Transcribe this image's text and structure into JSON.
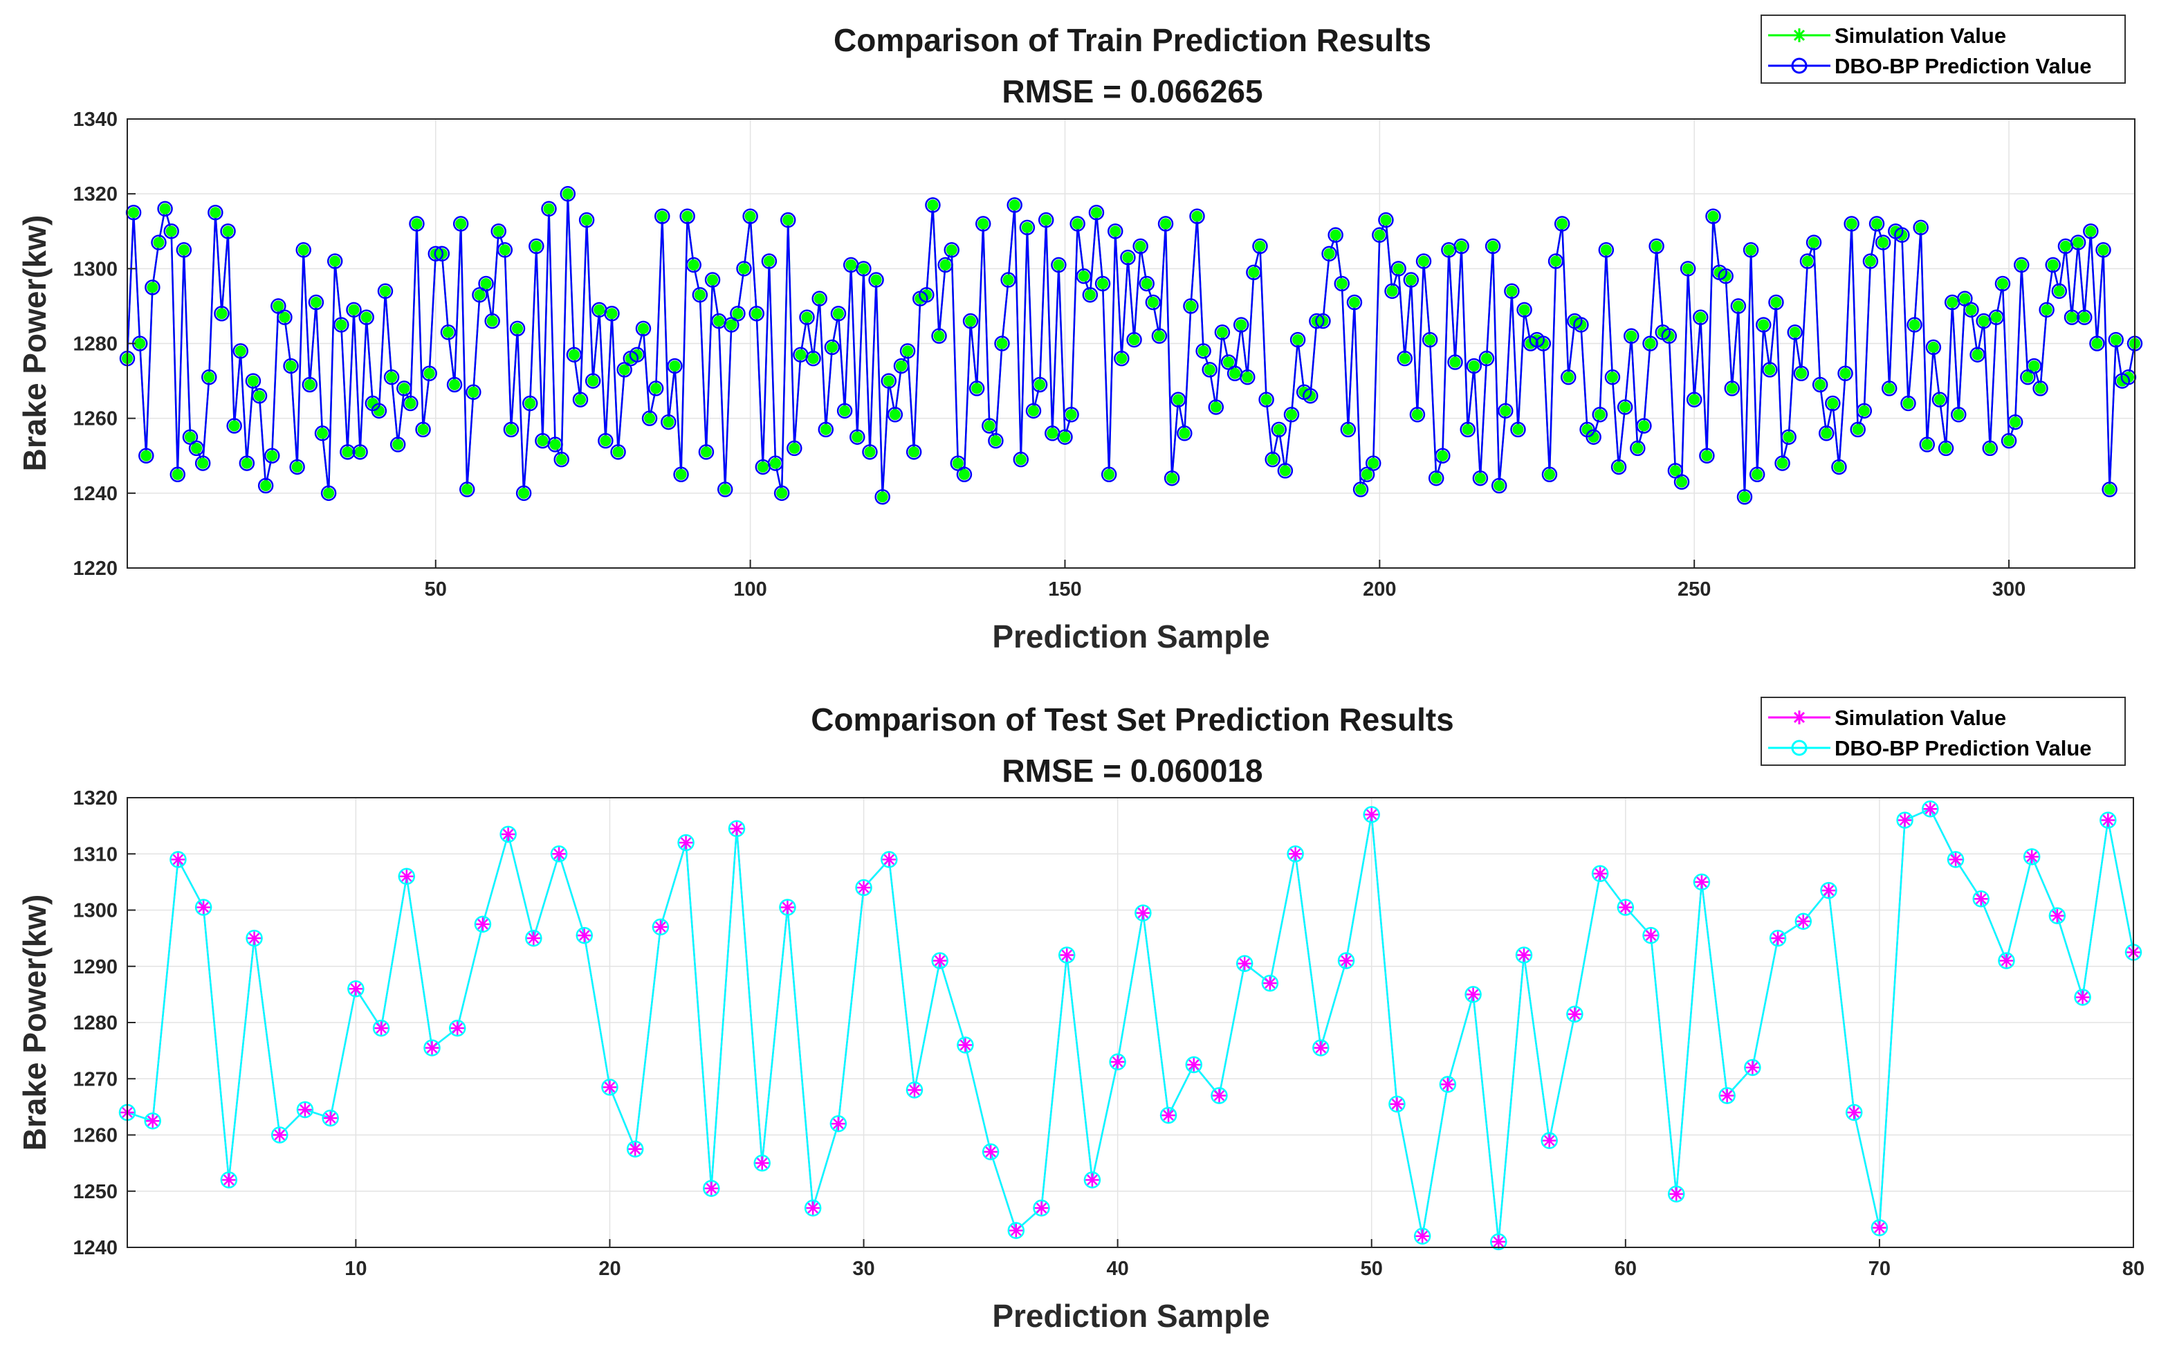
{
  "chart_data": [
    {
      "type": "line",
      "title": "Comparison of Train Prediction Results",
      "subtitle": "RMSE = 0.066265",
      "xlabel": "Prediction Sample",
      "ylabel": "Brake Power(kw)",
      "xlim": [
        1,
        320
      ],
      "ylim": [
        1220,
        1340
      ],
      "xticks": [
        50,
        100,
        150,
        200,
        250,
        300
      ],
      "yticks": [
        1220,
        1240,
        1260,
        1280,
        1300,
        1320,
        1340
      ],
      "grid": true,
      "legend_position": "top-right",
      "series": [
        {
          "name": "Simulation Value",
          "color": "#00ff00",
          "marker": "star",
          "values": [
            1276,
            1315,
            1280,
            1250,
            1295,
            1307,
            1316,
            1310,
            1245,
            1305,
            1255,
            1252,
            1248,
            1271,
            1315,
            1288,
            1310,
            1258,
            1278,
            1248,
            1270,
            1266,
            1242,
            1250,
            1290,
            1287,
            1274,
            1247,
            1305,
            1269,
            1291,
            1256,
            1240,
            1302,
            1285,
            1251,
            1289,
            1251,
            1287,
            1264,
            1262,
            1294,
            1271,
            1253,
            1268,
            1264,
            1312,
            1257,
            1272,
            1304,
            1304,
            1283,
            1269,
            1312,
            1241,
            1267,
            1293,
            1296,
            1286,
            1310,
            1305,
            1257,
            1284,
            1240,
            1264,
            1306,
            1254,
            1316,
            1253,
            1249,
            1320,
            1277,
            1265,
            1313,
            1270,
            1289,
            1254,
            1288,
            1251,
            1273,
            1276,
            1277,
            1284,
            1260,
            1268,
            1314,
            1259,
            1274,
            1245,
            1314,
            1301,
            1293,
            1251,
            1297,
            1286,
            1241,
            1285,
            1288,
            1300,
            1314,
            1288,
            1247,
            1302,
            1248,
            1240,
            1313,
            1252,
            1277,
            1287,
            1276,
            1292,
            1257,
            1279,
            1288,
            1262,
            1301,
            1255,
            1300,
            1251,
            1297,
            1239,
            1270,
            1261,
            1274,
            1278,
            1251,
            1292,
            1293,
            1317,
            1282,
            1301,
            1305,
            1248,
            1245,
            1286,
            1268,
            1312,
            1258,
            1254,
            1280,
            1297,
            1317,
            1249,
            1311,
            1262,
            1269,
            1313,
            1256,
            1301,
            1255,
            1261,
            1312,
            1298,
            1293,
            1315,
            1296,
            1245,
            1310,
            1276,
            1303,
            1281,
            1306,
            1296,
            1291,
            1282,
            1312,
            1244,
            1265,
            1256,
            1290,
            1314,
            1278,
            1273,
            1263,
            1283,
            1275,
            1272,
            1285,
            1271,
            1299,
            1306,
            1265,
            1249,
            1257,
            1246,
            1261,
            1281,
            1267,
            1266,
            1286,
            1286,
            1304,
            1309,
            1296,
            1257,
            1291,
            1241,
            1245,
            1248,
            1309,
            1313,
            1294,
            1300,
            1276,
            1297,
            1261,
            1302,
            1281,
            1244,
            1250,
            1305,
            1275,
            1306,
            1257,
            1274,
            1244,
            1276,
            1306,
            1242,
            1262,
            1294,
            1257,
            1289,
            1280,
            1281,
            1280,
            1245,
            1302,
            1312,
            1271,
            1286,
            1285,
            1257,
            1255,
            1261,
            1305,
            1271,
            1247,
            1263,
            1282,
            1252,
            1258,
            1280,
            1306,
            1283,
            1282,
            1246,
            1243,
            1300,
            1265,
            1287,
            1250,
            1314,
            1299,
            1298,
            1268,
            1290,
            1239,
            1305,
            1245,
            1285,
            1273,
            1291,
            1248,
            1255,
            1283,
            1272,
            1302,
            1307,
            1269,
            1256,
            1264,
            1247,
            1272,
            1312,
            1257,
            1262,
            1302,
            1312,
            1307,
            1268,
            1310,
            1309,
            1264,
            1285,
            1311,
            1253,
            1279,
            1265,
            1252,
            1291,
            1261,
            1292,
            1289,
            1277,
            1286,
            1252,
            1287,
            1296,
            1254,
            1259,
            1301,
            1271,
            1274,
            1268,
            1289,
            1301,
            1294,
            1306,
            1287,
            1307,
            1287,
            1310,
            1280,
            1305,
            1241,
            1281,
            1270,
            1271,
            1280
          ]
        },
        {
          "name": "DBO-BP Prediction Value",
          "color": "#0000ff",
          "marker": "circle",
          "values": [
            1276,
            1315,
            1280,
            1250,
            1295,
            1307,
            1316,
            1310,
            1245,
            1305,
            1255,
            1252,
            1248,
            1271,
            1315,
            1288,
            1310,
            1258,
            1278,
            1248,
            1270,
            1266,
            1242,
            1250,
            1290,
            1287,
            1274,
            1247,
            1305,
            1269,
            1291,
            1256,
            1240,
            1302,
            1285,
            1251,
            1289,
            1251,
            1287,
            1264,
            1262,
            1294,
            1271,
            1253,
            1268,
            1264,
            1312,
            1257,
            1272,
            1304,
            1304,
            1283,
            1269,
            1312,
            1241,
            1267,
            1293,
            1296,
            1286,
            1310,
            1305,
            1257,
            1284,
            1240,
            1264,
            1306,
            1254,
            1316,
            1253,
            1249,
            1320,
            1277,
            1265,
            1313,
            1270,
            1289,
            1254,
            1288,
            1251,
            1273,
            1276,
            1277,
            1284,
            1260,
            1268,
            1314,
            1259,
            1274,
            1245,
            1314,
            1301,
            1293,
            1251,
            1297,
            1286,
            1241,
            1285,
            1288,
            1300,
            1314,
            1288,
            1247,
            1302,
            1248,
            1240,
            1313,
            1252,
            1277,
            1287,
            1276,
            1292,
            1257,
            1279,
            1288,
            1262,
            1301,
            1255,
            1300,
            1251,
            1297,
            1239,
            1270,
            1261,
            1274,
            1278,
            1251,
            1292,
            1293,
            1317,
            1282,
            1301,
            1305,
            1248,
            1245,
            1286,
            1268,
            1312,
            1258,
            1254,
            1280,
            1297,
            1317,
            1249,
            1311,
            1262,
            1269,
            1313,
            1256,
            1301,
            1255,
            1261,
            1312,
            1298,
            1293,
            1315,
            1296,
            1245,
            1310,
            1276,
            1303,
            1281,
            1306,
            1296,
            1291,
            1282,
            1312,
            1244,
            1265,
            1256,
            1290,
            1314,
            1278,
            1273,
            1263,
            1283,
            1275,
            1272,
            1285,
            1271,
            1299,
            1306,
            1265,
            1249,
            1257,
            1246,
            1261,
            1281,
            1267,
            1266,
            1286,
            1286,
            1304,
            1309,
            1296,
            1257,
            1291,
            1241,
            1245,
            1248,
            1309,
            1313,
            1294,
            1300,
            1276,
            1297,
            1261,
            1302,
            1281,
            1244,
            1250,
            1305,
            1275,
            1306,
            1257,
            1274,
            1244,
            1276,
            1306,
            1242,
            1262,
            1294,
            1257,
            1289,
            1280,
            1281,
            1280,
            1245,
            1302,
            1312,
            1271,
            1286,
            1285,
            1257,
            1255,
            1261,
            1305,
            1271,
            1247,
            1263,
            1282,
            1252,
            1258,
            1280,
            1306,
            1283,
            1282,
            1246,
            1243,
            1300,
            1265,
            1287,
            1250,
            1314,
            1299,
            1298,
            1268,
            1290,
            1239,
            1305,
            1245,
            1285,
            1273,
            1291,
            1248,
            1255,
            1283,
            1272,
            1302,
            1307,
            1269,
            1256,
            1264,
            1247,
            1272,
            1312,
            1257,
            1262,
            1302,
            1312,
            1307,
            1268,
            1310,
            1309,
            1264,
            1285,
            1311,
            1253,
            1279,
            1265,
            1252,
            1291,
            1261,
            1292,
            1289,
            1277,
            1286,
            1252,
            1287,
            1296,
            1254,
            1259,
            1301,
            1271,
            1274,
            1268,
            1289,
            1301,
            1294,
            1306,
            1287,
            1307,
            1287,
            1310,
            1280,
            1305,
            1241,
            1281,
            1270,
            1271,
            1280
          ]
        }
      ]
    },
    {
      "type": "line",
      "title": "Comparison of Test Set Prediction Results",
      "subtitle": "RMSE = 0.060018",
      "xlabel": "Prediction Sample",
      "ylabel": "Brake Power(kw)",
      "xlim": [
        1,
        80
      ],
      "ylim": [
        1240,
        1320
      ],
      "xticks": [
        10,
        20,
        30,
        40,
        50,
        60,
        70,
        80
      ],
      "yticks": [
        1240,
        1250,
        1260,
        1270,
        1280,
        1290,
        1300,
        1310,
        1320
      ],
      "grid": true,
      "legend_position": "top-right",
      "series": [
        {
          "name": "Simulation Value",
          "color": "#ff00ff",
          "marker": "star",
          "values": [
            1264,
            1262.5,
            1309,
            1300.5,
            1252,
            1295,
            1260,
            1264.5,
            1263,
            1286,
            1279,
            1306,
            1275.5,
            1279,
            1297.5,
            1313.5,
            1295,
            1310,
            1295.5,
            1268.5,
            1257.5,
            1297,
            1312,
            1250.5,
            1314.5,
            1255,
            1300.5,
            1247,
            1262,
            1304,
            1309,
            1268,
            1291,
            1276,
            1257,
            1243,
            1247,
            1292,
            1252,
            1273,
            1299.5,
            1263.5,
            1272.5,
            1267,
            1290.5,
            1287,
            1310,
            1275.5,
            1291,
            1317,
            1265.5,
            1242,
            1269,
            1285,
            1241,
            1292,
            1259,
            1281.5,
            1306.5,
            1300.5,
            1295.5,
            1249.5,
            1305,
            1267,
            1272,
            1295,
            1298,
            1303.5,
            1264,
            1243.5,
            1316,
            1318,
            1309,
            1302,
            1291,
            1309.5,
            1299,
            1284.5,
            1316,
            1292.5
          ]
        },
        {
          "name": "DBO-BP Prediction Value",
          "color": "#00ffff",
          "marker": "circle",
          "values": [
            1264,
            1262.5,
            1309,
            1300.5,
            1252,
            1295,
            1260,
            1264.5,
            1263,
            1286,
            1279,
            1306,
            1275.5,
            1279,
            1297.5,
            1313.5,
            1295,
            1310,
            1295.5,
            1268.5,
            1257.5,
            1297,
            1312,
            1250.5,
            1314.5,
            1255,
            1300.5,
            1247,
            1262,
            1304,
            1309,
            1268,
            1291,
            1276,
            1257,
            1243,
            1247,
            1292,
            1252,
            1273,
            1299.5,
            1263.5,
            1272.5,
            1267,
            1290.5,
            1287,
            1310,
            1275.5,
            1291,
            1317,
            1265.5,
            1242,
            1269,
            1285,
            1241,
            1292,
            1259,
            1281.5,
            1306.5,
            1300.5,
            1295.5,
            1249.5,
            1305,
            1267,
            1272,
            1295,
            1298,
            1303.5,
            1264,
            1243.5,
            1316,
            1318,
            1309,
            1302,
            1291,
            1309.5,
            1299,
            1284.5,
            1316,
            1292.5
          ]
        }
      ]
    }
  ]
}
